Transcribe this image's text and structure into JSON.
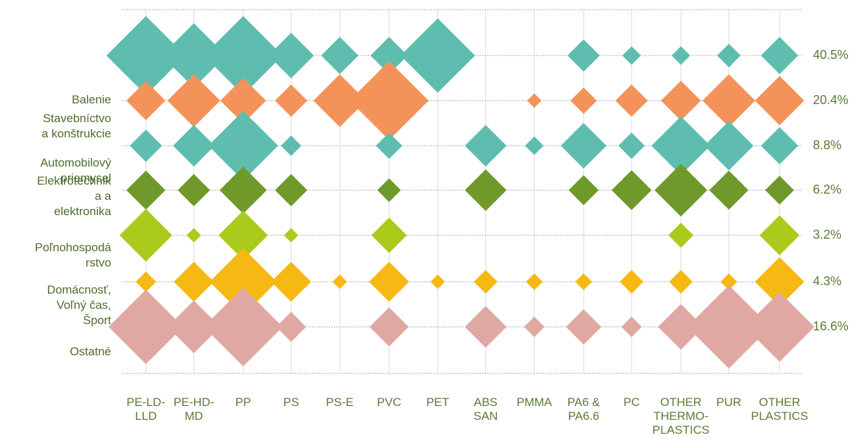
{
  "chart_data": {
    "type": "bubble-matrix",
    "categories": [
      "PE-LD-\nLLD",
      "PE-HD-\nMD",
      "PP",
      "PS",
      "PS-E",
      "PVC",
      "PET",
      "ABS\nSAN",
      "PMMA",
      "PA6 &\nPA6.6",
      "PC",
      "OTHER\nTHERMO-\nPLASTICS",
      "PUR",
      "OTHER\nPLASTICS"
    ],
    "row_labels": [
      [
        "Balenie"
      ],
      [
        "Stavebníctvo",
        "a konštrukcie"
      ],
      [
        "Automobilový",
        "priemysel"
      ],
      [
        "Elektrotechnik",
        "a a",
        "elektronika"
      ],
      [
        "Poľnohospodá",
        "rstvo"
      ],
      [
        "Domácnosť,",
        "Voľný čas,",
        "Šport"
      ],
      [
        "Ostatné"
      ]
    ],
    "row_percentages": [
      "40.5%",
      "20.4%",
      "8.8%",
      "6.2%",
      "3.2%",
      "4.3%",
      "16.6%"
    ],
    "row_colors": [
      "#5fbdb0",
      "#f3935a",
      "#5fbdb0",
      "#6f9a2b",
      "#aacb1c",
      "#f6b812",
      "#e0a8a2"
    ],
    "series": [
      {
        "name": "Balenie",
        "values": [
          9,
          6,
          9,
          3,
          2,
          2,
          8,
          0,
          0,
          1.5,
          0.5,
          0.5,
          0.8,
          2
        ]
      },
      {
        "name": "Stavebníctvo a konštrukcie",
        "values": [
          2.2,
          4,
          3,
          1.5,
          4,
          9,
          0,
          0,
          0.3,
          1,
          1.5,
          2.3,
          4,
          3.5
        ]
      },
      {
        "name": "Automobilový priemysel",
        "values": [
          1.5,
          2.5,
          7,
          0.6,
          0,
          1,
          0,
          2.5,
          0.5,
          3,
          1,
          5,
          3.5,
          2
        ]
      },
      {
        "name": "Elektrotechnika a elektronika",
        "values": [
          2.2,
          1.5,
          3.2,
          1.5,
          0,
          0.8,
          0,
          2.5,
          0,
          1.3,
          2.3,
          4,
          2.2,
          1.2
        ]
      },
      {
        "name": "Poľnohospodárstvo",
        "values": [
          4,
          0.3,
          3.5,
          0.3,
          0,
          1.8,
          0,
          0,
          0,
          0,
          0,
          0.9,
          0,
          2.3
        ]
      },
      {
        "name": "Domácnosť, Voľný čas, Šport",
        "values": [
          0.6,
          2.3,
          6.5,
          2.3,
          0.3,
          2.3,
          0.3,
          0.8,
          0.4,
          0.4,
          0.8,
          0.8,
          0.4,
          3.5
        ]
      },
      {
        "name": "Ostatné",
        "values": [
          8,
          4,
          9,
          1.3,
          0,
          2.2,
          0,
          2.5,
          0.6,
          1.8,
          0.6,
          3,
          10,
          7
        ]
      }
    ]
  }
}
